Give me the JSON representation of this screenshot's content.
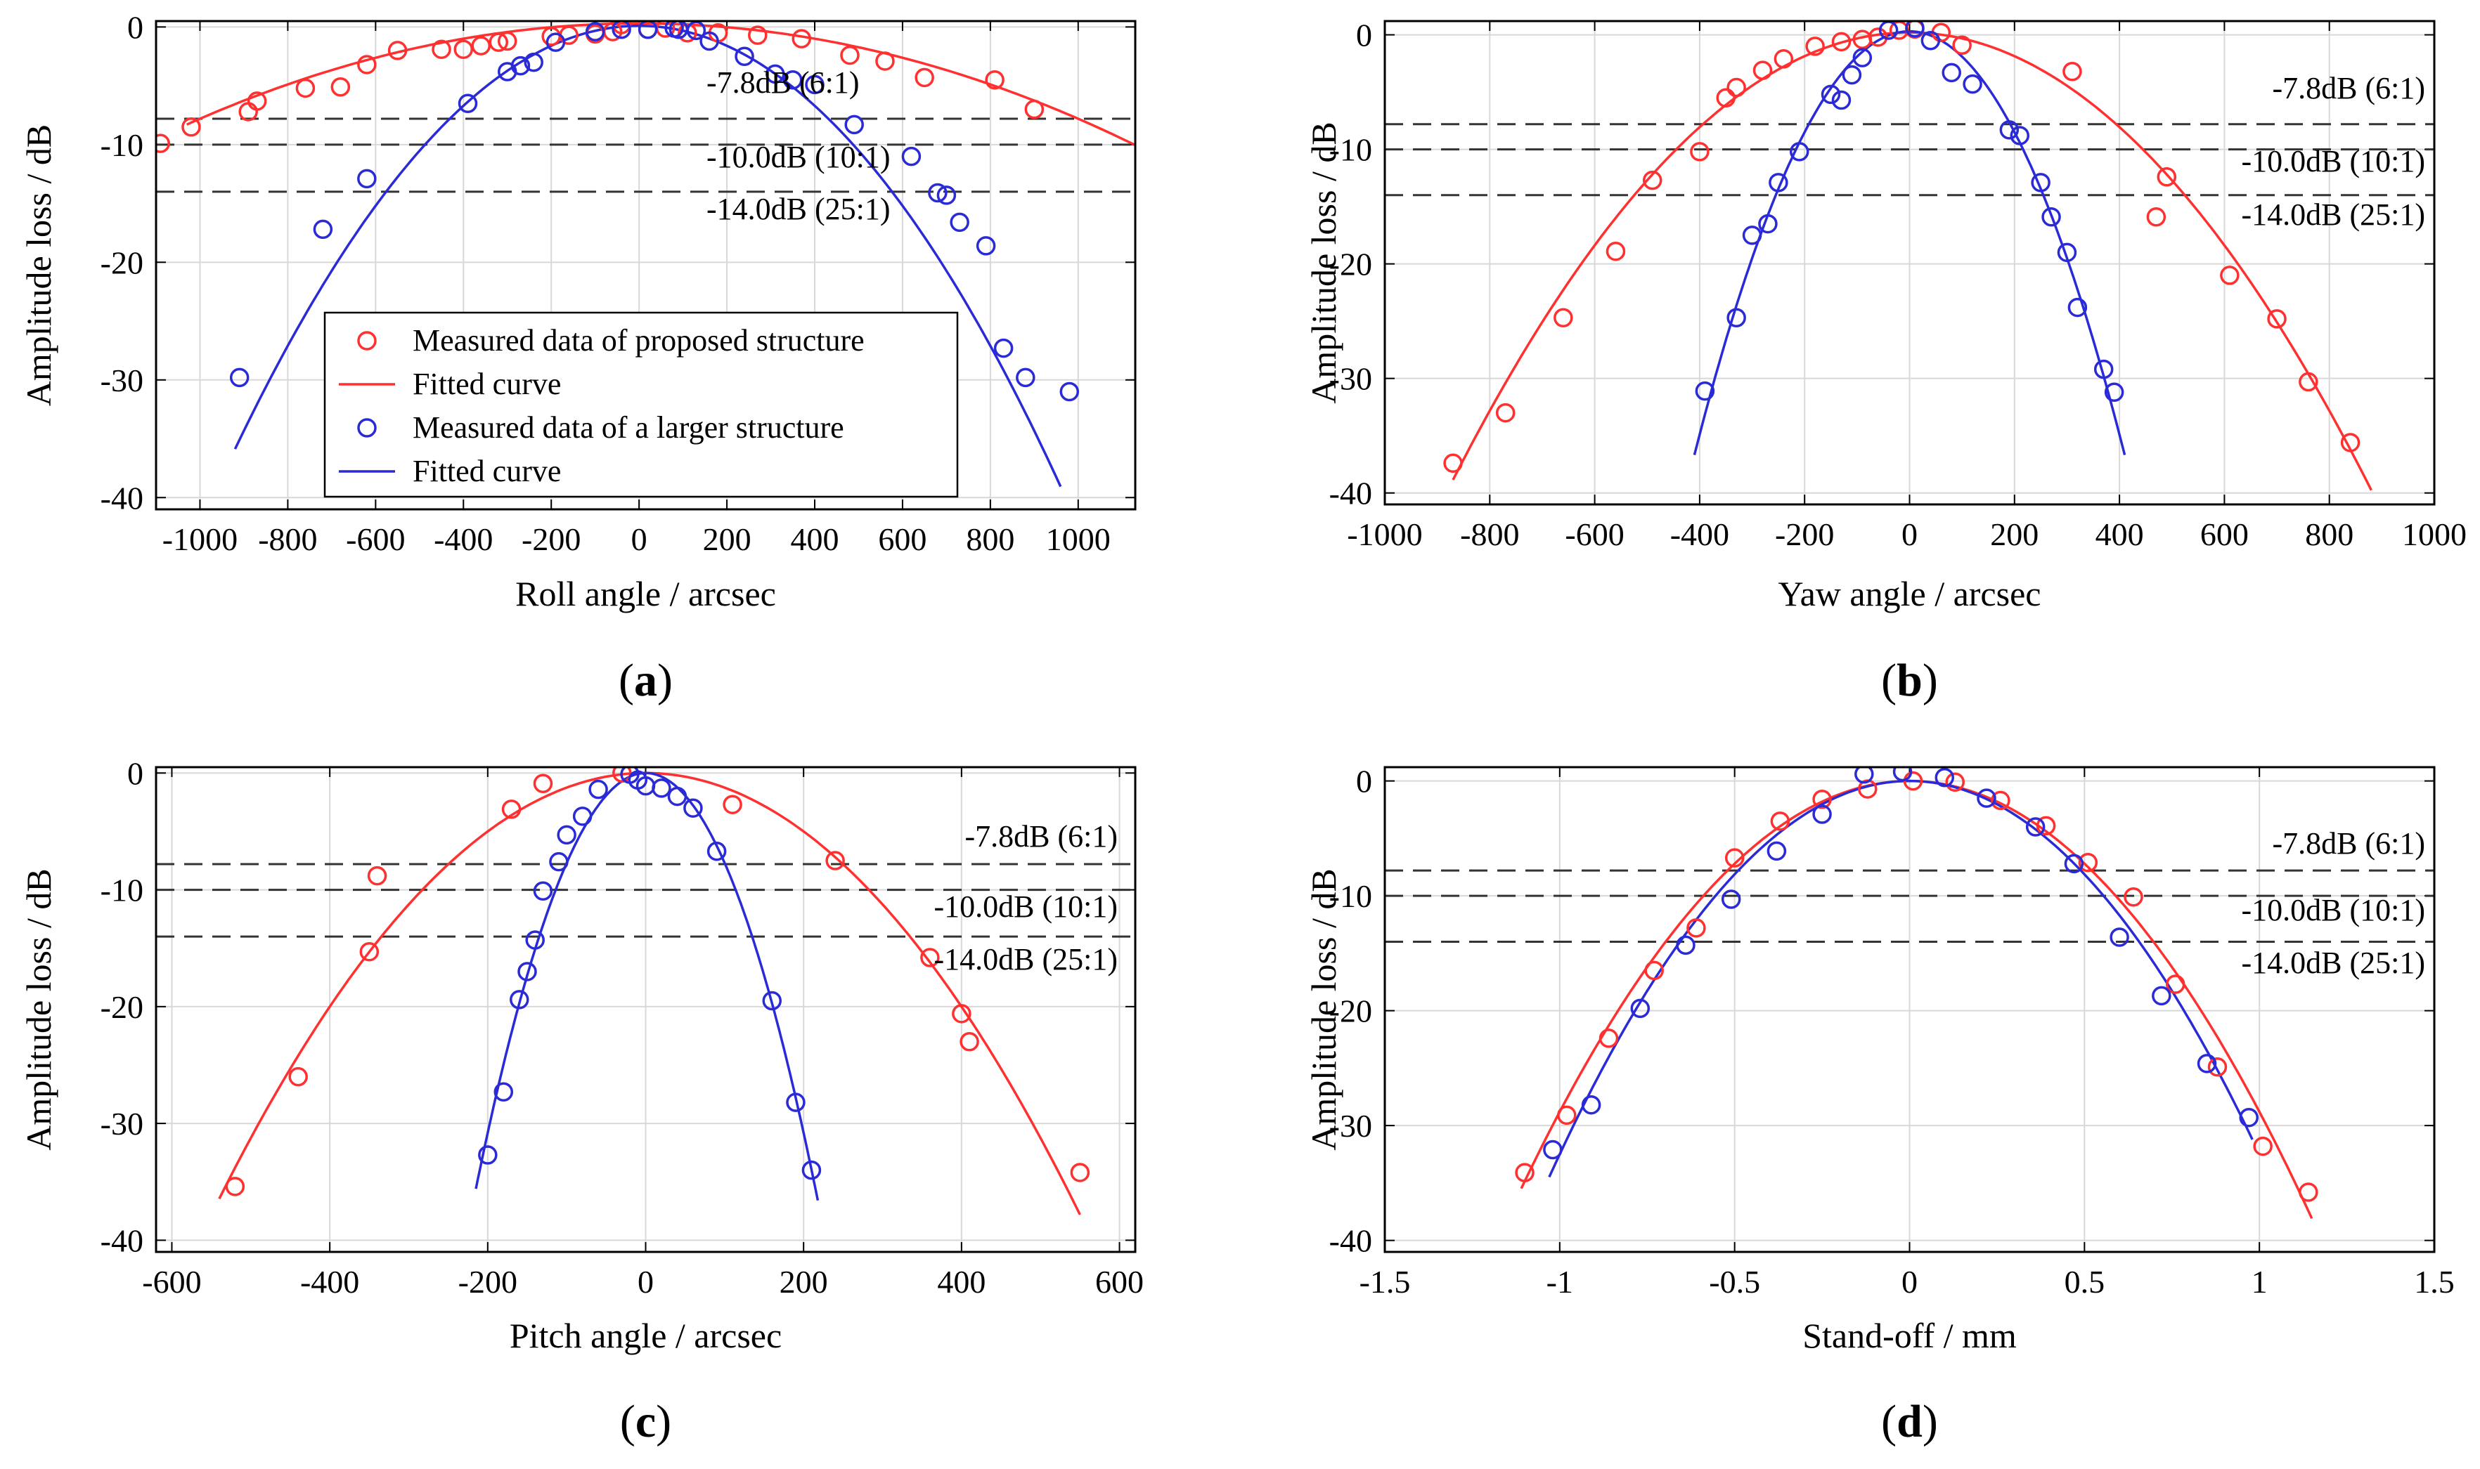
{
  "chart_data": [
    {
      "type": "scatter",
      "panel_label": "a",
      "xlabel": "Roll angle / arcsec",
      "ylabel": "Amplitude loss / dB",
      "xlim": [
        -1100,
        1130
      ],
      "ylim": [
        -41,
        0.5
      ],
      "xticks": [
        -1000,
        -800,
        -600,
        -400,
        -200,
        0,
        200,
        400,
        600,
        800,
        1000
      ],
      "xtick_labels": [
        "-1000",
        "-800",
        "-600",
        "-400",
        "-200",
        "0",
        "200",
        "400",
        "600",
        "800",
        "1000"
      ],
      "yticks": [
        0,
        -10,
        -20,
        -30,
        -40
      ],
      "ytick_labels": [
        "0",
        "-10",
        "-20",
        "-30",
        "-40"
      ],
      "grid": true,
      "thresholds": [
        {
          "y": -7.8,
          "label": "-7.8dB (6:1)"
        },
        {
          "y": -10.0,
          "label": "-10.0dB (10:1)"
        },
        {
          "y": -14.0,
          "label": "-14.0dB (25:1)"
        }
      ],
      "legend": {
        "placement": "lower-center",
        "entries": [
          "Measured data of proposed structure",
          "Fitted curve",
          "Measured data of a larger structure",
          "Fitted curve"
        ]
      },
      "series": [
        {
          "name": "Measured data of proposed structure",
          "color": "#ff3030",
          "points": [
            [
              -1090,
              -9.9
            ],
            [
              -1020,
              -8.5
            ],
            [
              -890,
              -7.2
            ],
            [
              -870,
              -6.3
            ],
            [
              -760,
              -5.2
            ],
            [
              -680,
              -5.1
            ],
            [
              -620,
              -3.2
            ],
            [
              -550,
              -2.0
            ],
            [
              -450,
              -1.9
            ],
            [
              -400,
              -1.9
            ],
            [
              -360,
              -1.6
            ],
            [
              -320,
              -1.3
            ],
            [
              -300,
              -1.2
            ],
            [
              -200,
              -0.8
            ],
            [
              -160,
              -0.7
            ],
            [
              -100,
              -0.6
            ],
            [
              -60,
              -0.4
            ],
            [
              -40,
              0.2
            ],
            [
              20,
              -0.2
            ],
            [
              60,
              -0.1
            ],
            [
              110,
              -0.5
            ],
            [
              180,
              -0.5
            ],
            [
              270,
              -0.7
            ],
            [
              370,
              -1.0
            ],
            [
              480,
              -2.4
            ],
            [
              560,
              -2.9
            ],
            [
              650,
              -4.3
            ],
            [
              810,
              -4.5
            ],
            [
              900,
              -7.0
            ]
          ]
        },
        {
          "name": "Fitted curve",
          "color": "#ff3030",
          "fit": {
            "a": -8.1e-06,
            "c": 0.3,
            "xmin": -1030,
            "xmax": 1130
          }
        },
        {
          "name": "Measured data of a larger structure",
          "color": "#2a2ad6",
          "points": [
            [
              -910,
              -29.8
            ],
            [
              -720,
              -17.2
            ],
            [
              -620,
              -12.9
            ],
            [
              -390,
              -6.5
            ],
            [
              -300,
              -3.8
            ],
            [
              -270,
              -3.3
            ],
            [
              -240,
              -3.0
            ],
            [
              -190,
              -1.3
            ],
            [
              -100,
              -0.4
            ],
            [
              -40,
              -0.2
            ],
            [
              20,
              -0.2
            ],
            [
              80,
              -0.1
            ],
            [
              90,
              -0.2
            ],
            [
              130,
              -0.3
            ],
            [
              160,
              -1.2
            ],
            [
              240,
              -2.5
            ],
            [
              310,
              -4.0
            ],
            [
              350,
              -4.5
            ],
            [
              400,
              -4.9
            ],
            [
              490,
              -8.3
            ],
            [
              620,
              -11.0
            ],
            [
              680,
              -14.1
            ],
            [
              700,
              -14.3
            ],
            [
              730,
              -16.6
            ],
            [
              790,
              -18.6
            ],
            [
              830,
              -27.3
            ],
            [
              880,
              -29.8
            ],
            [
              980,
              -31.0
            ]
          ]
        },
        {
          "name": "Fitted curve",
          "color": "#2a2ad6",
          "fit": {
            "a": -4.25e-05,
            "c": 0.1,
            "xmin": -920,
            "xmax": 960
          }
        }
      ]
    },
    {
      "type": "scatter",
      "panel_label": "b",
      "xlabel": "Yaw angle / arcsec",
      "ylabel": "Amplitude loss / dB",
      "xlim": [
        -1000,
        1000
      ],
      "ylim": [
        -41,
        1.2
      ],
      "xticks": [
        -1000,
        -800,
        -600,
        -400,
        -200,
        0,
        200,
        400,
        600,
        800,
        1000
      ],
      "xtick_labels": [
        "-1000",
        "-800",
        "-600",
        "-400",
        "-200",
        "0",
        "200",
        "400",
        "600",
        "800",
        "1000"
      ],
      "yticks": [
        0,
        -10,
        -20,
        -30,
        -40
      ],
      "ytick_labels": [
        "0",
        "-10",
        "-20",
        "-30",
        "-40"
      ],
      "grid": true,
      "thresholds": [
        {
          "y": -7.8,
          "label": "-7.8dB (6:1)"
        },
        {
          "y": -10.0,
          "label": "-10.0dB (10:1)"
        },
        {
          "y": -14.0,
          "label": "-14.0dB (25:1)"
        }
      ],
      "series": [
        {
          "name": "Measured data of proposed structure",
          "color": "#ff3030",
          "points": [
            [
              -870,
              -37.4
            ],
            [
              -770,
              -33.0
            ],
            [
              -660,
              -24.7
            ],
            [
              -560,
              -18.9
            ],
            [
              -490,
              -12.7
            ],
            [
              -400,
              -10.2
            ],
            [
              -350,
              -5.5
            ],
            [
              -330,
              -4.6
            ],
            [
              -280,
              -3.1
            ],
            [
              -240,
              -2.1
            ],
            [
              -180,
              -1.0
            ],
            [
              -130,
              -0.6
            ],
            [
              -90,
              -0.4
            ],
            [
              -60,
              -0.2
            ],
            [
              -20,
              0.4
            ],
            [
              10,
              0.5
            ],
            [
              60,
              0.2
            ],
            [
              100,
              -0.9
            ],
            [
              310,
              -3.2
            ],
            [
              490,
              -12.4
            ],
            [
              470,
              -15.9
            ],
            [
              610,
              -21.0
            ],
            [
              700,
              -24.8
            ],
            [
              760,
              -30.3
            ],
            [
              840,
              -35.6
            ]
          ]
        },
        {
          "name": "Fitted curve",
          "color": "#ff3030",
          "fit": {
            "a": -5.16e-05,
            "c": 0.2,
            "xmin": -870,
            "xmax": 880
          }
        },
        {
          "name": "Measured data of a larger structure",
          "color": "#2a2ad6",
          "points": [
            [
              -390,
              -31.1
            ],
            [
              -330,
              -24.7
            ],
            [
              -300,
              -17.5
            ],
            [
              -270,
              -16.5
            ],
            [
              -250,
              -12.9
            ],
            [
              -210,
              -10.2
            ],
            [
              -150,
              -5.2
            ],
            [
              -130,
              -5.7
            ],
            [
              -110,
              -3.5
            ],
            [
              -90,
              -2.0
            ],
            [
              -40,
              0.4
            ],
            [
              10,
              0.6
            ],
            [
              40,
              -0.5
            ],
            [
              80,
              -3.3
            ],
            [
              120,
              -4.3
            ],
            [
              190,
              -8.3
            ],
            [
              210,
              -8.8
            ],
            [
              250,
              -12.9
            ],
            [
              270,
              -15.9
            ],
            [
              300,
              -19.0
            ],
            [
              320,
              -23.8
            ],
            [
              370,
              -29.2
            ],
            [
              390,
              -31.2
            ]
          ]
        },
        {
          "name": "Fitted curve",
          "color": "#2a2ad6",
          "fit": {
            "a": -0.00022,
            "c": 0.3,
            "xmin": -410,
            "xmax": 410
          }
        }
      ]
    },
    {
      "type": "scatter",
      "panel_label": "c",
      "xlabel": "Pitch angle / arcsec",
      "ylabel": "Amplitude loss / dB",
      "xlim": [
        -620,
        620
      ],
      "ylim": [
        -41,
        0.5
      ],
      "xticks": [
        -600,
        -400,
        -200,
        0,
        200,
        400,
        600
      ],
      "xtick_labels": [
        "-600",
        "-400",
        "-200",
        "0",
        "200",
        "400",
        "600"
      ],
      "yticks": [
        0,
        -10,
        -20,
        -30,
        -40
      ],
      "ytick_labels": [
        "0",
        "-10",
        "-20",
        "-30",
        "-40"
      ],
      "grid": true,
      "thresholds": [
        {
          "y": -7.8,
          "label": "-7.8dB (6:1)"
        },
        {
          "y": -10.0,
          "label": "-10.0dB (10:1)"
        },
        {
          "y": -14.0,
          "label": "-14.0dB (25:1)"
        }
      ],
      "series": [
        {
          "name": "Measured data of proposed structure",
          "color": "#ff3030",
          "points": [
            [
              -520,
              -35.4
            ],
            [
              -440,
              -26.0
            ],
            [
              -350,
              -15.3
            ],
            [
              -340,
              -8.8
            ],
            [
              -170,
              -3.1
            ],
            [
              -130,
              -0.9
            ],
            [
              -30,
              0.0
            ],
            [
              110,
              -2.7
            ],
            [
              240,
              -7.5
            ],
            [
              360,
              -15.8
            ],
            [
              400,
              -20.6
            ],
            [
              410,
              -23.0
            ],
            [
              550,
              -34.2
            ]
          ]
        },
        {
          "name": "Fitted curve",
          "color": "#ff3030",
          "fit": {
            "a": -0.000125,
            "c": 0.0,
            "xmin": -540,
            "xmax": 550
          }
        },
        {
          "name": "Measured data of a larger structure",
          "color": "#2a2ad6",
          "points": [
            [
              -200,
              -32.7
            ],
            [
              -180,
              -27.3
            ],
            [
              -160,
              -19.4
            ],
            [
              -150,
              -17.0
            ],
            [
              -140,
              -14.3
            ],
            [
              -130,
              -10.1
            ],
            [
              -110,
              -7.6
            ],
            [
              -100,
              -5.3
            ],
            [
              -80,
              -3.7
            ],
            [
              -60,
              -1.4
            ],
            [
              -20,
              -0.1
            ],
            [
              -10,
              -0.6
            ],
            [
              0,
              -1.1
            ],
            [
              20,
              -1.3
            ],
            [
              40,
              -2.0
            ],
            [
              60,
              -3.0
            ],
            [
              90,
              -6.7
            ],
            [
              160,
              -19.5
            ],
            [
              190,
              -28.2
            ],
            [
              210,
              -34.0
            ]
          ]
        },
        {
          "name": "Fitted curve",
          "color": "#2a2ad6",
          "fit": {
            "a": -0.00077,
            "c": 0.0,
            "xmin": -215,
            "xmax": 218
          }
        }
      ]
    },
    {
      "type": "scatter",
      "panel_label": "d",
      "xlabel": "Stand-off / mm",
      "ylabel": "Amplitude loss / dB",
      "xlim": [
        -1.5,
        1.5
      ],
      "ylim": [
        -41,
        1.2
      ],
      "xticks": [
        -1.5,
        -1.0,
        -0.5,
        0.0,
        0.5,
        1.0,
        1.5
      ],
      "xtick_labels": [
        "-1.5",
        "-1",
        "-0.5",
        "0",
        "0.5",
        "1",
        "1.5"
      ],
      "yticks": [
        0,
        -10,
        -20,
        -30,
        -40
      ],
      "ytick_labels": [
        "0",
        "-10",
        "-20",
        "-30",
        "-40"
      ],
      "grid": true,
      "thresholds": [
        {
          "y": -7.8,
          "label": "-7.8dB (6:1)"
        },
        {
          "y": -10.0,
          "label": "-10.0dB (10:1)"
        },
        {
          "y": -14.0,
          "label": "-14.0dB (25:1)"
        }
      ],
      "series": [
        {
          "name": "Measured data of proposed structure",
          "color": "#ff3030",
          "points": [
            [
              -1.1,
              -34.1
            ],
            [
              -0.98,
              -29.1
            ],
            [
              -0.86,
              -22.4
            ],
            [
              -0.73,
              -16.5
            ],
            [
              -0.61,
              -12.8
            ],
            [
              -0.5,
              -6.7
            ],
            [
              -0.37,
              -3.5
            ],
            [
              -0.25,
              -1.6
            ],
            [
              -0.12,
              -0.7
            ],
            [
              0.01,
              0.0
            ],
            [
              0.13,
              -0.1
            ],
            [
              0.26,
              -1.7
            ],
            [
              0.39,
              -3.9
            ],
            [
              0.51,
              -7.1
            ],
            [
              0.64,
              -10.1
            ],
            [
              0.76,
              -17.7
            ],
            [
              0.88,
              -24.9
            ],
            [
              1.01,
              -31.8
            ],
            [
              1.14,
              -35.8
            ]
          ]
        },
        {
          "name": "Fitted curve",
          "color": "#ff3030",
          "fit": {
            "a": -28.8,
            "c": 0.0,
            "xmin": -1.11,
            "xmax": 1.15
          }
        },
        {
          "name": "Measured data of a larger structure",
          "color": "#2a2ad6",
          "points": [
            [
              -1.02,
              -32.1
            ],
            [
              -0.91,
              -28.2
            ],
            [
              -0.77,
              -19.8
            ],
            [
              -0.64,
              -14.3
            ],
            [
              -0.51,
              -10.3
            ],
            [
              -0.38,
              -6.1
            ],
            [
              -0.25,
              -2.9
            ],
            [
              -0.13,
              0.6
            ],
            [
              -0.02,
              0.8
            ],
            [
              0.1,
              0.3
            ],
            [
              0.22,
              -1.5
            ],
            [
              0.36,
              -4.0
            ],
            [
              0.47,
              -7.2
            ],
            [
              0.6,
              -13.6
            ],
            [
              0.72,
              -18.7
            ],
            [
              0.85,
              -24.6
            ],
            [
              0.97,
              -29.3
            ]
          ]
        },
        {
          "name": "Fitted curve",
          "color": "#2a2ad6",
          "fit": {
            "a": -32.5,
            "c": 0.0,
            "xmin": -1.03,
            "xmax": 0.98
          }
        }
      ]
    }
  ]
}
